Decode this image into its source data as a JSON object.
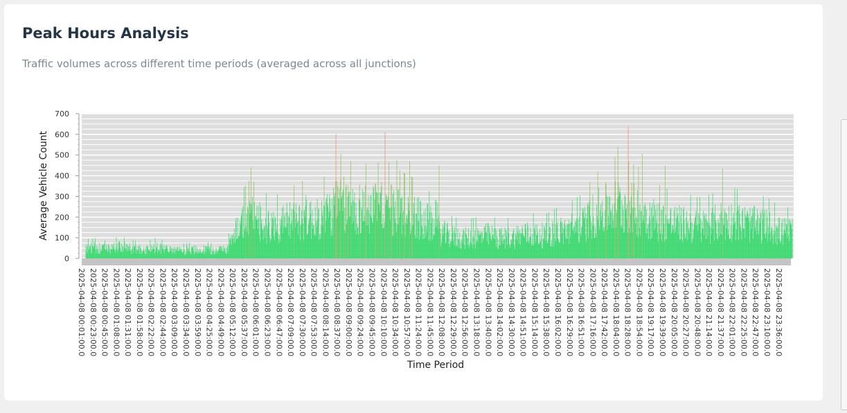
{
  "card": {
    "title": "Peak Hours Analysis",
    "subtitle": "Traffic volumes across different time periods (averaged across all junctions)"
  },
  "colors": {
    "bar_normal": "#34d96b",
    "bar_high": "#8fbf5a",
    "bar_peak": "#f08a6c",
    "plot_background": "#dedede",
    "gridline": "#ffffff",
    "x_axis_band": "#c4c4c4"
  },
  "chart_data": {
    "type": "bar",
    "title": "",
    "xlabel": "Time Period",
    "ylabel": "Average Vehicle Count",
    "ylim": [
      0,
      700
    ],
    "yticks": [
      0,
      100,
      200,
      300,
      400,
      500,
      600,
      700
    ],
    "grid": true,
    "legend": "none",
    "tick_labels": [
      "2025-04-08 00:01:00.0",
      "2025-04-08 00:23:00.0",
      "2025-04-08 00:45:00.0",
      "2025-04-08 01:08:00.0",
      "2025-04-08 01:31:00.0",
      "2025-04-08 01:58:00.0",
      "2025-04-08 02:22:00.0",
      "2025-04-08 02:44:00.0",
      "2025-04-08 03:09:00.0",
      "2025-04-08 03:34:00.0",
      "2025-04-08 03:59:00.0",
      "2025-04-08 04:25:00.0",
      "2025-04-08 04:49:00.0",
      "2025-04-08 05:12:00.0",
      "2025-04-08 05:37:00.0",
      "2025-04-08 06:01:00.0",
      "2025-04-08 06:23:00.0",
      "2025-04-08 06:47:00.0",
      "2025-04-08 07:09:00.0",
      "2025-04-08 07:30:00.0",
      "2025-04-08 07:53:00.0",
      "2025-04-08 08:14:00.0",
      "2025-04-08 08:37:00.0",
      "2025-04-08 09:00:00.0",
      "2025-04-08 09:24:00.0",
      "2025-04-08 09:45:00.0",
      "2025-04-08 10:10:00.0",
      "2025-04-08 10:34:00.0",
      "2025-04-08 10:57:00.0",
      "2025-04-08 11:24:00.0",
      "2025-04-08 11:45:00.0",
      "2025-04-08 12:08:00.0",
      "2025-04-08 12:29:00.0",
      "2025-04-08 12:56:00.0",
      "2025-04-08 13:18:00.0",
      "2025-04-08 13:40:00.0",
      "2025-04-08 14:02:00.0",
      "2025-04-08 14:30:00.0",
      "2025-04-08 14:51:00.0",
      "2025-04-08 15:14:00.0",
      "2025-04-08 15:38:00.0",
      "2025-04-08 16:02:00.0",
      "2025-04-08 16:29:00.0",
      "2025-04-08 16:51:00.0",
      "2025-04-08 17:16:00.0",
      "2025-04-08 17:42:00.0",
      "2025-04-08 18:04:00.0",
      "2025-04-08 18:28:00.0",
      "2025-04-08 18:54:00.0",
      "2025-04-08 19:17:00.0",
      "2025-04-08 19:39:00.0",
      "2025-04-08 20:05:00.0",
      "2025-04-08 20:27:00.0",
      "2025-04-08 20:48:00.0",
      "2025-04-08 21:14:00.0",
      "2025-04-08 21:37:00.0",
      "2025-04-08 22:01:00.0",
      "2025-04-08 22:25:00.0",
      "2025-04-08 22:47:00.0",
      "2025-04-08 23:10:00.0",
      "2025-04-08 23:36:00.0"
    ],
    "period_start": "2025-04-08 00:01:00.0",
    "period_end": "2025-04-08 23:59:00.0",
    "values_per_tick_label": [
      60,
      65,
      55,
      70,
      60,
      50,
      65,
      55,
      45,
      50,
      55,
      45,
      60,
      200,
      250,
      210,
      190,
      220,
      230,
      250,
      230,
      270,
      330,
      300,
      300,
      290,
      310,
      280,
      260,
      240,
      200,
      150,
      130,
      120,
      130,
      140,
      120,
      130,
      150,
      140,
      140,
      160,
      180,
      200,
      260,
      300,
      320,
      300,
      280,
      240,
      220,
      210,
      200,
      190,
      200,
      230,
      220,
      210,
      200,
      190,
      160
    ],
    "peaks": [
      {
        "time": "2025-04-08 08:30:00.0",
        "value": 600
      },
      {
        "time": "2025-04-08 10:10:00.0",
        "value": 610
      },
      {
        "time": "2025-04-08 18:04:00.0",
        "value": 540
      },
      {
        "time": "2025-04-08 18:25:00.0",
        "value": 640
      },
      {
        "time": "2025-04-08 18:54:00.0",
        "value": 505
      },
      {
        "time": "2025-04-08 05:37:00.0",
        "value": 440
      },
      {
        "time": "2025-04-08 09:00:00.0",
        "value": 470
      },
      {
        "time": "2025-04-08 10:34:00.0",
        "value": 475
      },
      {
        "time": "2025-04-08 11:00:00.0",
        "value": 470
      },
      {
        "time": "2025-04-08 12:00:00.0",
        "value": 450
      },
      {
        "time": "2025-04-08 19:40:00.0",
        "value": 450
      },
      {
        "time": "2025-04-08 21:37:00.0",
        "value": 435
      }
    ]
  }
}
